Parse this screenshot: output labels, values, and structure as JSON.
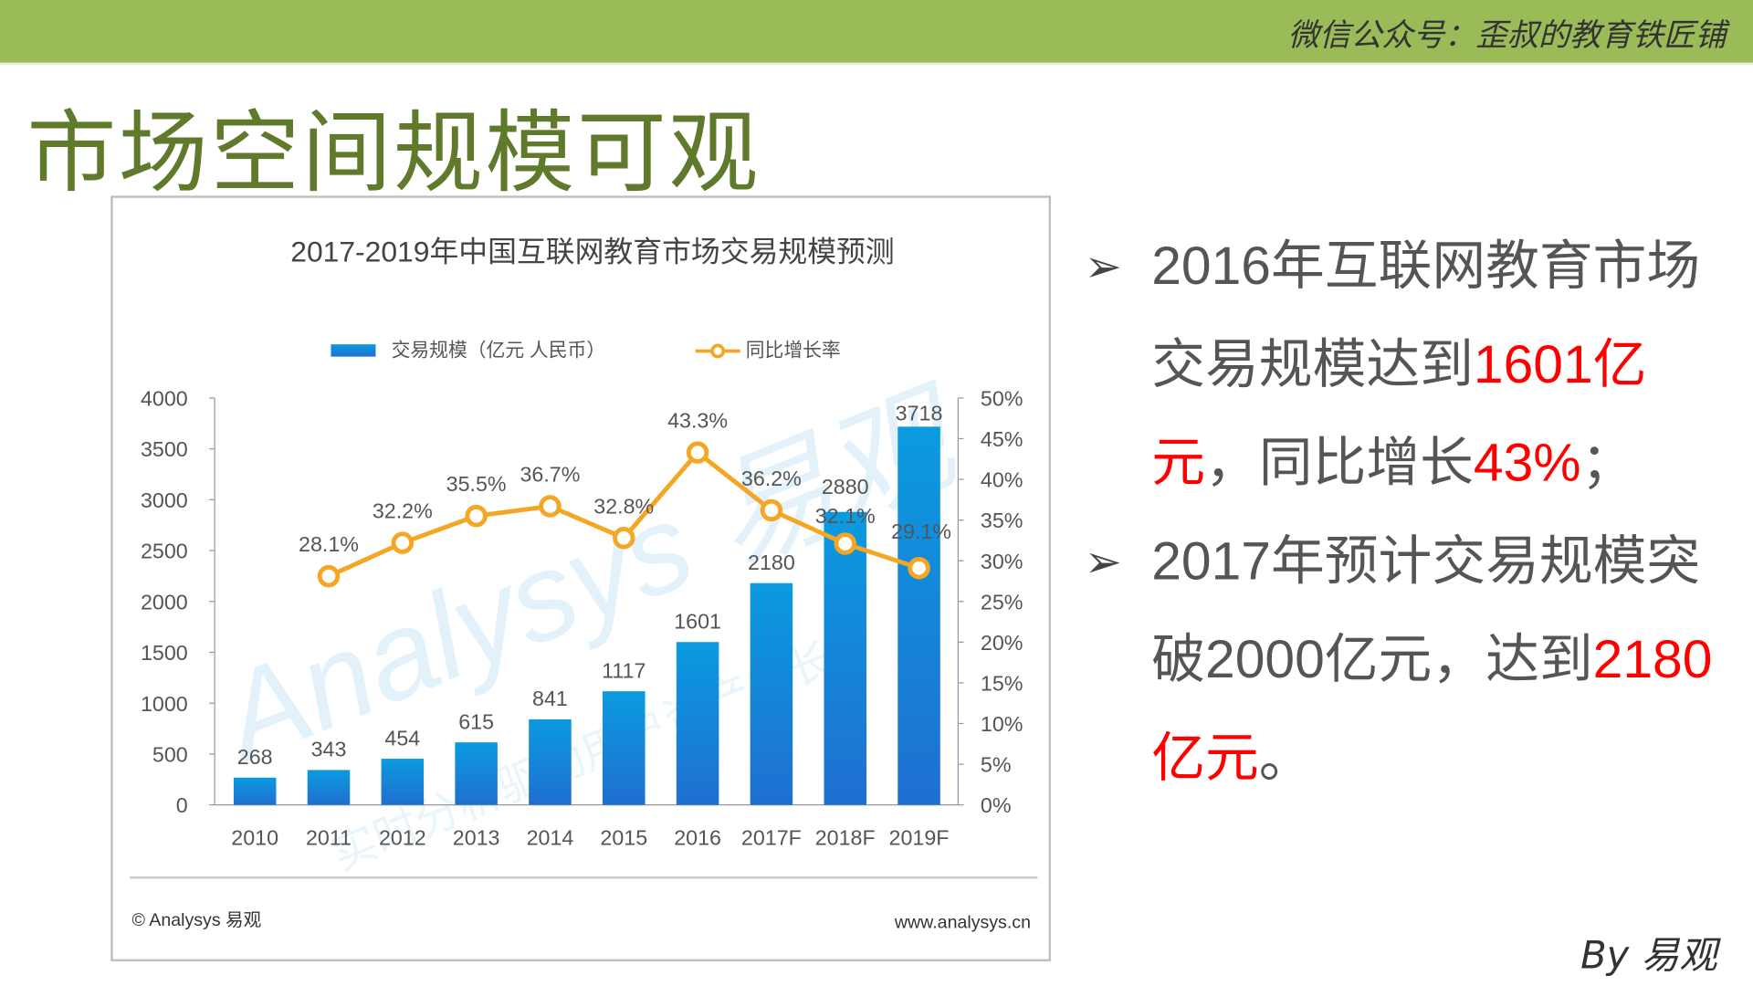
{
  "header": {
    "wechat": "微信公众号：歪叔的教育铁匠铺"
  },
  "slide_title": "市场空间规模可观",
  "bullets": [
    {
      "parts": [
        {
          "t": "2016年互联网教育市场交易规模达到",
          "red": false
        },
        {
          "t": "1601亿元",
          "red": true
        },
        {
          "t": "，同比增长",
          "red": false
        },
        {
          "t": "43%",
          "red": true
        },
        {
          "t": "；",
          "red": false
        }
      ]
    },
    {
      "parts": [
        {
          "t": "2017年预计交易规模突破2000亿元，达到",
          "red": false
        },
        {
          "t": "2180亿元",
          "red": true
        },
        {
          "t": "。",
          "red": false
        }
      ]
    }
  ],
  "byline": "By 易观",
  "chart_footer": {
    "left": "© Analysys 易观",
    "right": "www.analysys.cn"
  },
  "watermark": {
    "brand": "Analysys 易观",
    "slogan": "实时分析驱动用户资产成长"
  },
  "colors": {
    "bar": "#1a8fd8",
    "line": "#f5a623",
    "accent_red": "#ff0000",
    "header": "#9bbb59",
    "title": "#5f7a2a"
  },
  "chart_data": {
    "type": "bar+line",
    "title": "2017-2019年中国互联网教育市场交易规模预测",
    "categories": [
      "2010",
      "2011",
      "2012",
      "2013",
      "2014",
      "2015",
      "2016",
      "2017F",
      "2018F",
      "2019F"
    ],
    "legend_position": "top",
    "series": [
      {
        "name": "交易规模（亿元 人民币）",
        "type": "bar",
        "axis": "left",
        "values": [
          268,
          343,
          454,
          615,
          841,
          1117,
          1601,
          2180,
          2880,
          3718
        ],
        "labels": [
          "268",
          "343",
          "454",
          "615",
          "841",
          "1117",
          "1601",
          "2180",
          "2880",
          "3718"
        ]
      },
      {
        "name": "同比增长率",
        "type": "line",
        "axis": "right",
        "values": [
          null,
          28.1,
          32.2,
          35.5,
          36.7,
          32.8,
          43.3,
          36.2,
          32.1,
          29.1
        ],
        "labels": [
          "",
          "28.1%",
          "32.2%",
          "35.5%",
          "36.7%",
          "32.8%",
          "43.3%",
          "36.2%",
          "32.1%",
          "29.1%"
        ]
      }
    ],
    "y_left": {
      "range": [
        0,
        4000
      ],
      "ticks": [
        "0",
        "500",
        "1000",
        "1500",
        "2000",
        "2500",
        "3000",
        "3500",
        "4000"
      ]
    },
    "y_right": {
      "range": [
        0,
        50
      ],
      "ticks": [
        "0%",
        "5%",
        "10%",
        "15%",
        "20%",
        "25%",
        "30%",
        "35%",
        "40%",
        "45%",
        "50%"
      ]
    },
    "grid": false
  }
}
